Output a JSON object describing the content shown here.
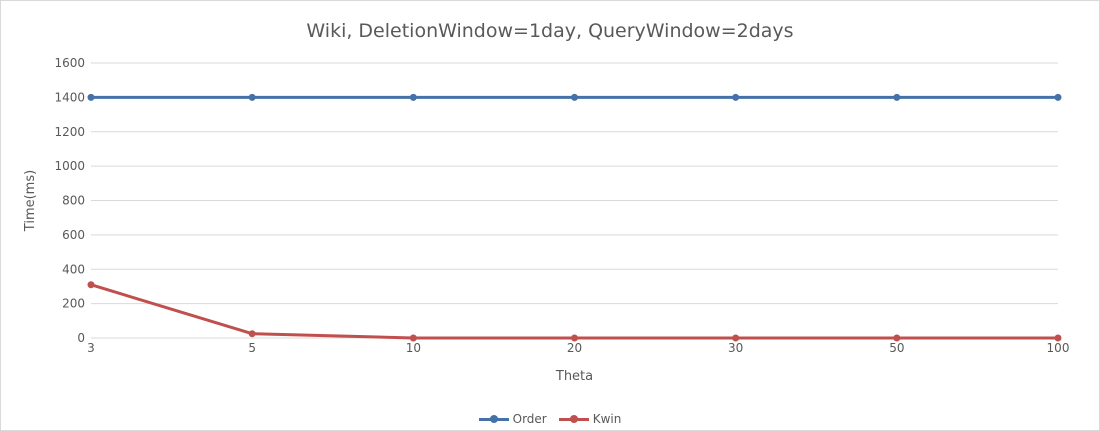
{
  "chart_data": {
    "type": "line",
    "title": "Wiki, DeletionWindow=1day, QueryWindow=2days",
    "xlabel": "Theta",
    "ylabel": "Time(ms)",
    "categories": [
      "3",
      "5",
      "10",
      "20",
      "30",
      "50",
      "100"
    ],
    "ylim": [
      0,
      1600
    ],
    "yticks": [
      0,
      200,
      400,
      600,
      800,
      1000,
      1200,
      1400,
      1600
    ],
    "grid": true,
    "legend_position": "bottom",
    "series": [
      {
        "name": "Order",
        "color": "#4472a8",
        "values": [
          1400,
          1400,
          1400,
          1400,
          1400,
          1400,
          1400
        ]
      },
      {
        "name": "Kwin",
        "color": "#c0504d",
        "values": [
          310,
          25,
          0,
          0,
          0,
          0,
          0
        ]
      }
    ]
  }
}
